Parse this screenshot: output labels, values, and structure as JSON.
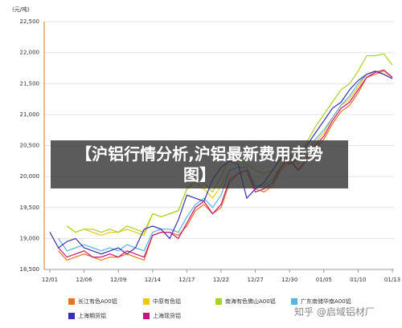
{
  "chart_data": {
    "type": "line",
    "title": "【沪铝行情分析,沪铝最新费用走势图】",
    "y_label": "(元/吨)",
    "watermark": "知乎 @启域铝材厂",
    "categories": [
      "12/01",
      null,
      null,
      null,
      "12/06",
      null,
      null,
      null,
      "12/09",
      null,
      null,
      null,
      "12/14",
      null,
      null,
      null,
      "12/17",
      null,
      null,
      null,
      "12/22",
      null,
      null,
      null,
      "12/27",
      null,
      null,
      null,
      "12/30",
      null,
      null,
      null,
      "01/05",
      null,
      null,
      null,
      "01/10",
      null,
      null,
      null,
      "01/13"
    ],
    "ylim": [
      18500,
      22500
    ],
    "yticks": [
      {
        "value": 18500,
        "label": "18,500"
      },
      {
        "value": 19000,
        "label": "19,000"
      },
      {
        "value": 19500,
        "label": "19,500"
      },
      {
        "value": 20000,
        "label": "20,000"
      },
      {
        "value": 20500,
        "label": "20,500"
      },
      {
        "value": 21000,
        "label": "21,000"
      },
      {
        "value": 21500,
        "label": "21,500"
      },
      {
        "value": 22000,
        "label": "22,000"
      },
      {
        "value": 22500,
        "label": "22,500"
      }
    ],
    "grid": true,
    "series": [
      {
        "name": "长江有色A00铝",
        "color": "#e8731a",
        "values": [
          null,
          18800,
          18650,
          18700,
          18750,
          18700,
          18650,
          18700,
          18700,
          18750,
          18700,
          18650,
          19050,
          19100,
          19100,
          19050,
          19200,
          19450,
          19550,
          19400,
          19500,
          19900,
          20050,
          20100,
          19800,
          19750,
          19850,
          20100,
          20250,
          20100,
          20250,
          20450,
          20600,
          20850,
          21050,
          21150,
          21350,
          21600,
          21650,
          21700,
          21600
        ]
      },
      {
        "name": "中原有色铝",
        "color": "#f2c80f",
        "values": [
          null,
          null,
          19200,
          19100,
          19150,
          19100,
          19050,
          19100,
          19100,
          19150,
          19100,
          19050,
          19400,
          19350,
          19400,
          19450,
          19800,
          19900,
          19800,
          19650,
          19850,
          20100,
          20150,
          20150,
          19850,
          19850,
          19950,
          20200,
          20350,
          20200,
          20350,
          20550,
          20700,
          20950,
          21150,
          21250,
          21450,
          21650,
          21700,
          21700,
          21600
        ]
      },
      {
        "name": "南海有色佛山A00铝",
        "color": "#a6d22c",
        "values": [
          null,
          null,
          19200,
          19100,
          19150,
          19150,
          19100,
          19150,
          19100,
          19200,
          19150,
          19100,
          19400,
          19350,
          19400,
          19450,
          19800,
          19950,
          19900,
          19750,
          20000,
          20300,
          20250,
          20200,
          20100,
          20050,
          20100,
          20300,
          20450,
          20350,
          20550,
          20800,
          21000,
          21200,
          21400,
          21500,
          21700,
          21950,
          21950,
          21980,
          21800
        ]
      },
      {
        "name": "广东南储华南A00铝",
        "color": "#5bb3e0",
        "values": [
          null,
          19000,
          18800,
          18850,
          18900,
          18850,
          18800,
          18850,
          18800,
          18900,
          18850,
          18800,
          19100,
          19150,
          19150,
          19100,
          19350,
          19550,
          19650,
          19500,
          19700,
          20100,
          20150,
          20150,
          19850,
          19850,
          19950,
          20150,
          20350,
          20250,
          20400,
          20600,
          20750,
          20950,
          21150,
          21300,
          21500,
          21650,
          21700,
          21650,
          21580
        ]
      },
      {
        "name": "上海期货铝",
        "color": "#3a2fae",
        "values": [
          19100,
          18850,
          18950,
          19000,
          18850,
          18800,
          18750,
          18800,
          18850,
          18750,
          18850,
          19150,
          19200,
          19150,
          19000,
          19300,
          19700,
          19650,
          19600,
          19950,
          20150,
          20250,
          20200,
          19650,
          19800,
          19900,
          20100,
          20300,
          20200,
          20300,
          20500,
          20700,
          20900,
          21100,
          21200,
          21400,
          21550,
          21650,
          21700,
          21650,
          21580
        ]
      },
      {
        "name": "上海现货铝",
        "color": "#c8157c",
        "values": [
          null,
          18850,
          18700,
          18750,
          18800,
          18700,
          18700,
          18750,
          18700,
          18800,
          18750,
          18700,
          19050,
          19100,
          19100,
          19000,
          19250,
          19500,
          19600,
          19400,
          19550,
          19950,
          20050,
          20100,
          19750,
          19800,
          19900,
          20150,
          20300,
          20100,
          20300,
          20500,
          20650,
          20900,
          21100,
          21200,
          21400,
          21600,
          21680,
          21720,
          21600
        ]
      }
    ]
  }
}
